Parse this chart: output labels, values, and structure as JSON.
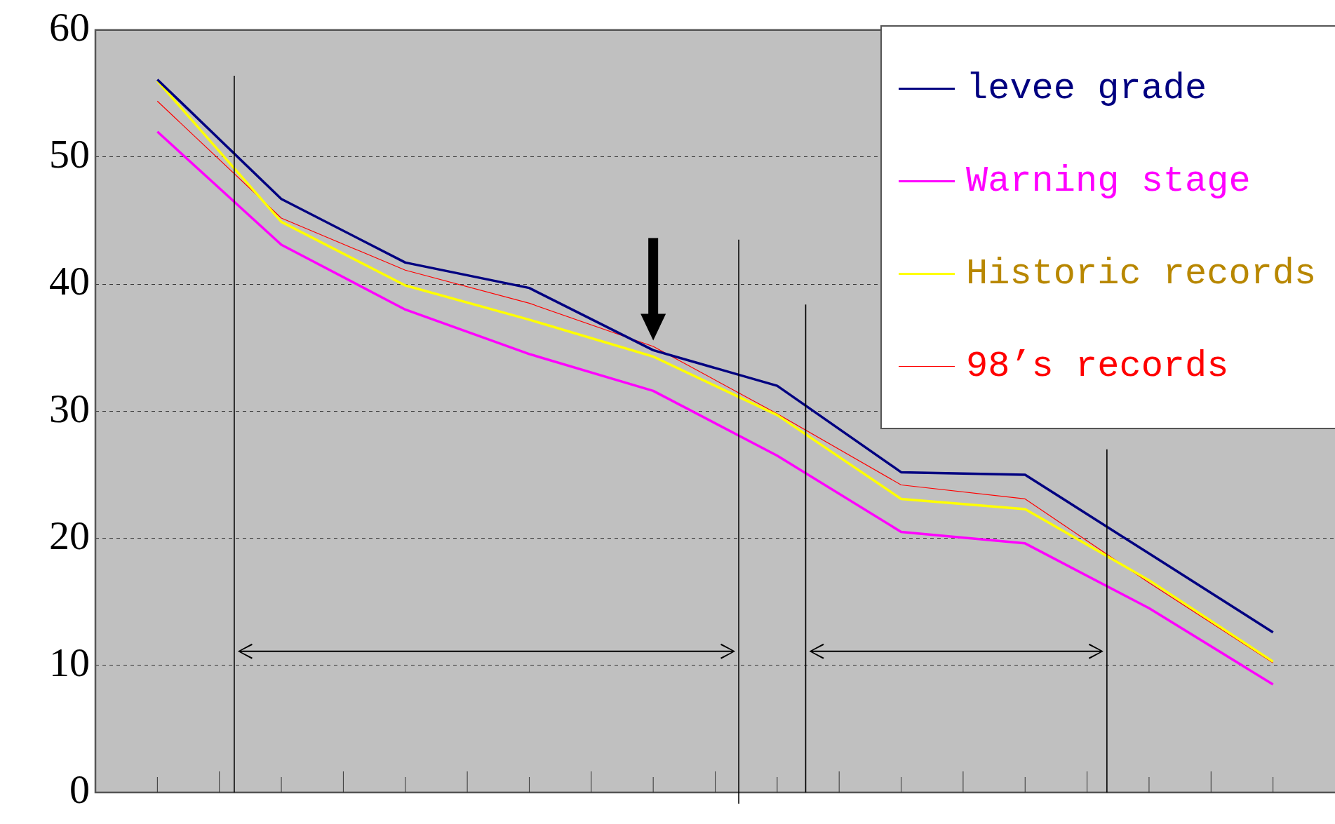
{
  "chart_data": {
    "type": "line",
    "categories": [
      null,
      null,
      null,
      null,
      null,
      null,
      null,
      null,
      null,
      null
    ],
    "series": [
      {
        "name": "levee grade",
        "color": "#000080",
        "values": [
          56.1,
          46.7,
          41.7,
          39.7,
          34.8,
          32.0,
          25.2,
          25.0,
          18.8,
          12.6
        ]
      },
      {
        "name": "Warning stage",
        "color": "#ff00ff",
        "values": [
          52.0,
          43.1,
          38.0,
          34.5,
          31.6,
          26.5,
          20.5,
          19.6,
          14.5,
          8.5
        ]
      },
      {
        "name": "Historic records",
        "color": "#ffff00",
        "values": [
          56.0,
          44.9,
          39.9,
          37.2,
          34.3,
          29.7,
          23.1,
          22.3,
          16.7,
          10.3
        ]
      },
      {
        "name": "98’s records",
        "color": "#ff0000",
        "values": [
          54.4,
          45.2,
          41.1,
          38.5,
          35.1,
          29.8,
          24.2,
          23.1,
          16.5,
          10.2
        ]
      }
    ],
    "ylim": [
      0,
      60
    ],
    "yticks": [
      0,
      10,
      20,
      30,
      40,
      50,
      60
    ],
    "tick_labels": "y",
    "grid": "y",
    "legend": "top right",
    "marker": "none"
  }
}
